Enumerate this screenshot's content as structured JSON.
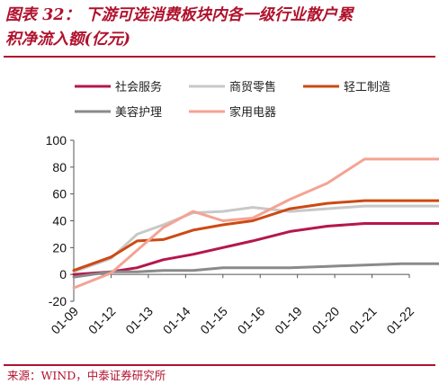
{
  "title": {
    "line1": "图表 32：  下游可选消费板块内各一级行业散户累",
    "line2": "积净流入额(亿元)"
  },
  "source": "来源：WIND，中泰证券研究所",
  "chart_data": {
    "type": "line",
    "categories": [
      "01-09",
      "01-12",
      "01-13",
      "01-14",
      "01-15",
      "01-16",
      "01-19",
      "01-20",
      "01-21",
      "01-22"
    ],
    "ylim": [
      -20,
      100
    ],
    "yticks": [
      -20,
      0,
      20,
      40,
      60,
      80,
      100
    ],
    "grid": false,
    "legend_position": "top",
    "x": [
      0,
      1,
      1.7,
      2.4,
      3.2,
      4.0,
      4.8,
      5.8,
      6.8,
      7.8,
      8.8,
      9.9
    ],
    "series": [
      {
        "name": "社会服务",
        "color": "#b5174a",
        "values": [
          0,
          2,
          5,
          11,
          15,
          20,
          25,
          32,
          36,
          38,
          38,
          38
        ]
      },
      {
        "name": "商贸零售",
        "color": "#c8c8c8",
        "values": [
          2,
          12,
          30,
          37,
          46,
          47,
          50,
          47,
          49,
          51,
          51,
          51
        ]
      },
      {
        "name": "轻工制造",
        "color": "#cc4a14",
        "values": [
          3,
          13,
          25,
          26,
          33,
          37,
          40,
          49,
          53,
          55,
          55,
          55
        ]
      },
      {
        "name": "美容护理",
        "color": "#8a8a8a",
        "values": [
          -2,
          2,
          2,
          3,
          3,
          5,
          5,
          5,
          6,
          7,
          8,
          8
        ]
      },
      {
        "name": "家用电器",
        "color": "#f4a394",
        "values": [
          -10,
          1,
          18,
          35,
          47,
          40,
          42,
          56,
          68,
          86,
          86,
          86
        ]
      }
    ]
  }
}
